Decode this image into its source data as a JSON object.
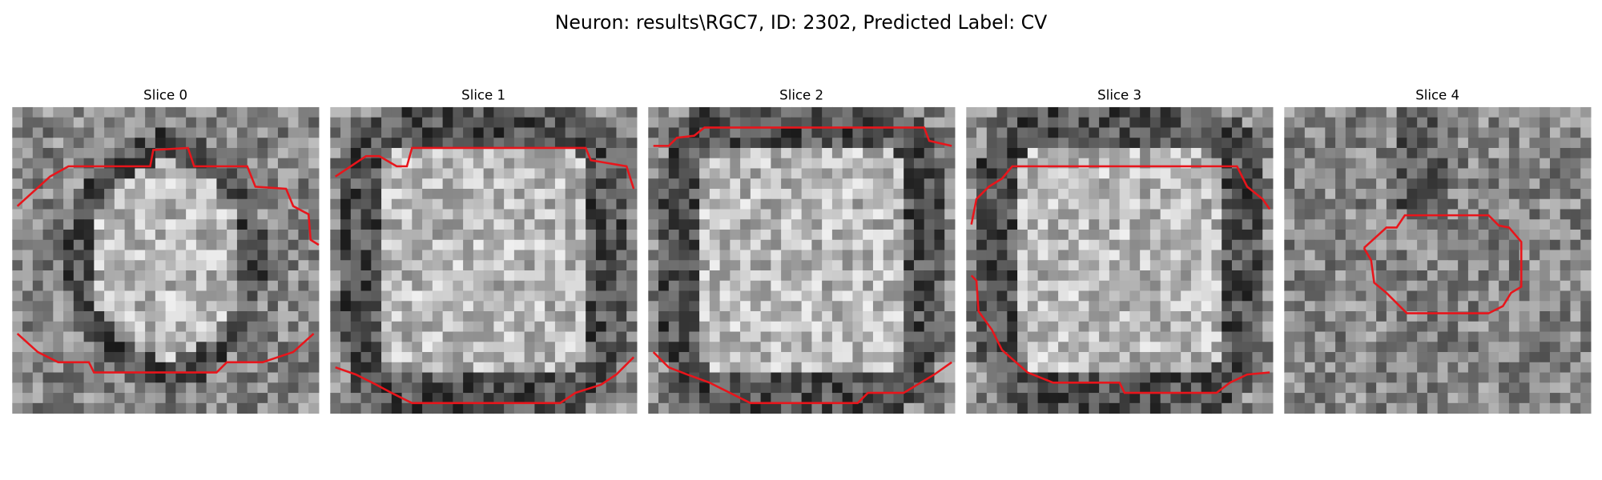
{
  "title": "Neuron: results\\RGC7, ID: 2302, Predicted Label: CV",
  "panels": [
    {
      "title": "Slice 0"
    },
    {
      "title": "Slice 1"
    },
    {
      "title": "Slice 2"
    },
    {
      "title": "Slice 3"
    },
    {
      "title": "Slice 4"
    }
  ]
}
